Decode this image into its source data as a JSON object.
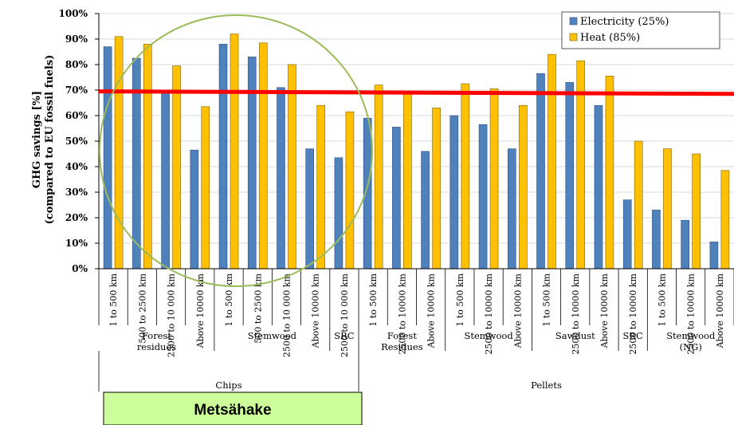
{
  "chart_data": {
    "type": "bar",
    "ylabel": "GHG savings [%]",
    "ylabel2": "(compared to EU fossil fuels)",
    "ylim": [
      0,
      100
    ],
    "yticks": [
      "0%",
      "10%",
      "20%",
      "30%",
      "40%",
      "50%",
      "60%",
      "70%",
      "80%",
      "90%",
      "100%"
    ],
    "grid": true,
    "legend_position": "top-right",
    "series": [
      {
        "name": "Electricity (25%)",
        "color": "#4F81BD",
        "values": [
          87,
          82.5,
          69.5,
          46.5,
          88,
          83,
          71,
          47,
          43.5,
          59,
          55.5,
          46,
          60,
          56.5,
          47,
          76.5,
          73,
          64,
          27,
          23,
          19,
          10.5
        ]
      },
      {
        "name": "Heat (85%)",
        "color": "#FFC000",
        "values": [
          91,
          88,
          79.5,
          63.5,
          92,
          88.5,
          80,
          64,
          61.5,
          72,
          69,
          63,
          72.5,
          70.5,
          64,
          84,
          81.5,
          75.5,
          50,
          47,
          45,
          38.5
        ]
      }
    ],
    "categories": [
      "1 to 500 km",
      "500 to 2500 km",
      "2500 to 10 000 km",
      "Above 10000 km",
      "1 to 500 km",
      "500 to 2500 km",
      "2500 to 10 000 km",
      "Above 10000 km",
      "2500 to 10 000 km",
      "1 to 500 km",
      "2500  to 10000 km",
      "Above 10000 km",
      "1 to 500 km",
      "2500  to 10000 km",
      "Above 10000 km",
      "1 to 500 km",
      "2500  to 10000 km",
      "Above 10000 km",
      "2500  to 10000 km",
      "1 to 500 km",
      "2500  to 10000 km",
      "Above 10000 km"
    ],
    "groups": [
      {
        "lines": [
          "Forest",
          "residues"
        ],
        "start": 0,
        "end": 3
      },
      {
        "lines": [
          "Stemwood"
        ],
        "start": 4,
        "end": 7
      },
      {
        "lines": [
          "SRC"
        ],
        "start": 8,
        "end": 8
      },
      {
        "lines": [
          "Forest",
          "Residues"
        ],
        "start": 9,
        "end": 11
      },
      {
        "lines": [
          "Stemwood"
        ],
        "start": 12,
        "end": 14
      },
      {
        "lines": [
          "Sawdust"
        ],
        "start": 15,
        "end": 17
      },
      {
        "lines": [
          "SRC"
        ],
        "start": 18,
        "end": 18
      },
      {
        "lines": [
          "Stemwood",
          "(NG)"
        ],
        "start": 19,
        "end": 21
      }
    ],
    "supergroups": [
      {
        "label": "Chips",
        "start": 0,
        "end": 8
      },
      {
        "label": "Pellets",
        "start": 9,
        "end": 21
      }
    ],
    "reference_line": {
      "value": 69.5,
      "end_value": 68.5,
      "color": "#FF0000"
    },
    "highlight_circle": {
      "color": "#9BBB59"
    },
    "callout": {
      "label": "Metsähake",
      "color": "#CCFF99"
    }
  }
}
